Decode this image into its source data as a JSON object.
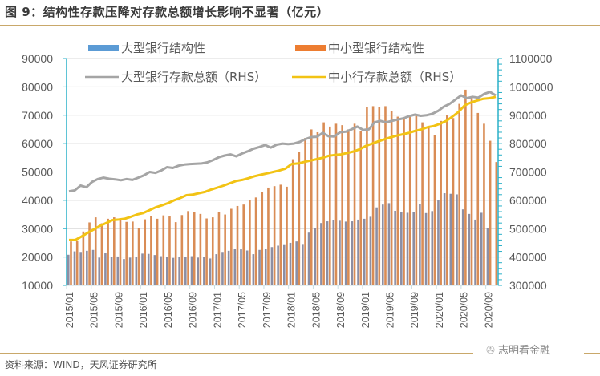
{
  "header": {
    "title": "图 9：结构性存款压降对存款总额增长影响不显著（亿元）"
  },
  "footer": {
    "source": "资料来源：WIND，天风证券研究所",
    "watermark": "志明看金融"
  },
  "colors": {
    "large_struct": "#8c8ea3",
    "large_struct_legend": "#5b9bd5",
    "small_struct": "#d98c55",
    "small_struct_legend": "#ed7d31",
    "large_total": "#a5a5a5",
    "small_total": "#f2c314",
    "axis": "#2ab0c8",
    "grid": "#d9d9d9"
  },
  "chart_data": {
    "type": "bar",
    "title": "结构性存款压降对存款总额增长影响不显著（亿元）",
    "xlabel": "",
    "ylabel": "",
    "y_left": {
      "min": 10000,
      "max": 90000,
      "step": 10000,
      "ticks": [
        "10000",
        "20000",
        "30000",
        "40000",
        "50000",
        "60000",
        "70000",
        "80000",
        "90000"
      ]
    },
    "y_right": {
      "min": 300000,
      "max": 1100000,
      "step": 100000,
      "ticks": [
        "300000",
        "400000",
        "500000",
        "600000",
        "700000",
        "800000",
        "900000",
        "1000000",
        "1100000"
      ]
    },
    "grid": true,
    "legend_position": "top",
    "x_tick_labels": [
      "2015/01",
      "2015/05",
      "2015/09",
      "2016/01",
      "2016/05",
      "2016/09",
      "2017/01",
      "2017/05",
      "2017/09",
      "2018/01",
      "2018/05",
      "2018/09",
      "2019/01",
      "2019/05",
      "2019/09",
      "2020/01",
      "2020/05",
      "2020/09"
    ],
    "x_start": "2015/01",
    "x_end": "2020/09",
    "series": [
      {
        "name": "大型银行结构性",
        "type": "bar",
        "axis": "left",
        "values": [
          20800,
          22000,
          21800,
          22200,
          22500,
          19800,
          21300,
          20000,
          20200,
          19300,
          19800,
          20000,
          21200,
          21100,
          20700,
          20300,
          19900,
          19700,
          19900,
          20000,
          20300,
          19800,
          20000,
          19500,
          21000,
          21800,
          22200,
          23000,
          22700,
          22300,
          21000,
          22500,
          23000,
          23500,
          24000,
          24500,
          25000,
          25500,
          24600,
          28600,
          30200,
          32000,
          32600,
          32900,
          32800,
          32500,
          32600,
          33200,
          33500,
          34200,
          37500,
          38500,
          39000,
          36300,
          35900,
          35600,
          35800,
          38800,
          35500,
          36200,
          40000,
          42500,
          42300,
          42100,
          36800,
          35200,
          33200,
          35600,
          30200
        ]
      },
      {
        "name": "中小型银行结构性",
        "type": "bar",
        "axis": "left",
        "values": [
          25500,
          25800,
          29000,
          32200,
          34000,
          31900,
          33500,
          34000,
          33000,
          32400,
          32500,
          30300,
          33300,
          34500,
          33500,
          34700,
          34300,
          32300,
          34800,
          36200,
          36000,
          35200,
          33600,
          34000,
          36000,
          35000,
          37000,
          38000,
          38500,
          40000,
          41000,
          43000,
          44500,
          45000,
          45500,
          44800,
          54500,
          57000,
          62000,
          65000,
          64000,
          67500,
          66000,
          67000,
          66500,
          65000,
          67000,
          64500,
          73000,
          73200,
          73000,
          73200,
          71500,
          69500,
          69000,
          69500,
          70000,
          67500,
          66000,
          63000,
          68000,
          70000,
          69000,
          74000,
          79000,
          76500,
          70800,
          67000,
          61000,
          53500
        ]
      },
      {
        "name": "大型银行存款总额（RHS）",
        "type": "line",
        "axis": "right",
        "values": [
          632000,
          635000,
          652000,
          646000,
          665000,
          675000,
          680000,
          676000,
          674000,
          671000,
          675000,
          672000,
          680000,
          688000,
          700000,
          697000,
          705000,
          717000,
          714000,
          722000,
          726000,
          728000,
          729000,
          730000,
          734000,
          742000,
          752000,
          758000,
          762000,
          755000,
          765000,
          773000,
          782000,
          788000,
          795000,
          786000,
          796000,
          800000,
          798000,
          800000,
          806000,
          816000,
          823000,
          824000,
          838000,
          826000,
          825000,
          840000,
          842000,
          850000,
          860000,
          848000,
          850000,
          875000,
          880000,
          875000,
          880000,
          885000,
          889000,
          897000,
          902000,
          898000,
          900000,
          905000,
          915000,
          930000,
          940000,
          955000,
          970000,
          960000,
          965000,
          962000,
          975000,
          982000,
          970000
        ]
      },
      {
        "name": "中小行存款总额（RHS）",
        "type": "line",
        "axis": "right",
        "values": [
          460000,
          460000,
          472000,
          485000,
          497000,
          510000,
          520000,
          530000,
          532000,
          535000,
          542000,
          550000,
          555000,
          565000,
          575000,
          582000,
          590000,
          600000,
          608000,
          618000,
          620000,
          625000,
          630000,
          638000,
          645000,
          652000,
          660000,
          668000,
          672000,
          678000,
          685000,
          690000,
          695000,
          700000,
          705000,
          712000,
          728000,
          730000,
          735000,
          740000,
          745000,
          750000,
          757000,
          760000,
          762000,
          767000,
          772000,
          780000,
          792000,
          800000,
          808000,
          815000,
          822000,
          828000,
          833000,
          838000,
          845000,
          850000,
          858000,
          862000,
          870000,
          880000,
          895000,
          912000,
          935000,
          945000,
          952000,
          958000,
          960000,
          965000
        ]
      }
    ]
  }
}
